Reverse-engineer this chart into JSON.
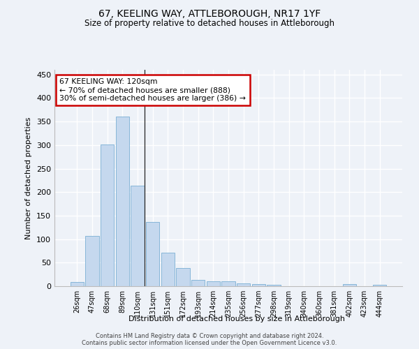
{
  "title1": "67, KEELING WAY, ATTLEBOROUGH, NR17 1YF",
  "title2": "Size of property relative to detached houses in Attleborough",
  "xlabel": "Distribution of detached houses by size in Attleborough",
  "ylabel": "Number of detached properties",
  "categories": [
    "26sqm",
    "47sqm",
    "68sqm",
    "89sqm",
    "110sqm",
    "131sqm",
    "151sqm",
    "172sqm",
    "193sqm",
    "214sqm",
    "235sqm",
    "256sqm",
    "277sqm",
    "298sqm",
    "319sqm",
    "340sqm",
    "360sqm",
    "381sqm",
    "402sqm",
    "423sqm",
    "444sqm"
  ],
  "values": [
    9,
    107,
    301,
    360,
    213,
    137,
    71,
    39,
    13,
    11,
    10,
    6,
    5,
    3,
    0,
    0,
    0,
    0,
    4,
    0,
    3
  ],
  "bar_color": "#c5d8ee",
  "bar_edge_color": "#7aafd4",
  "background_color": "#eef2f8",
  "grid_color": "#ffffff",
  "annotation_line1": "67 KEELING WAY: 120sqm",
  "annotation_line2": "← 70% of detached houses are smaller (888)",
  "annotation_line3": "30% of semi-detached houses are larger (386) →",
  "annotation_box_color": "#ffffff",
  "annotation_box_edge": "#cc0000",
  "property_bar_index": 4,
  "footer1": "Contains HM Land Registry data © Crown copyright and database right 2024.",
  "footer2": "Contains public sector information licensed under the Open Government Licence v3.0.",
  "ylim": [
    0,
    460
  ],
  "yticks": [
    0,
    50,
    100,
    150,
    200,
    250,
    300,
    350,
    400,
    450
  ]
}
